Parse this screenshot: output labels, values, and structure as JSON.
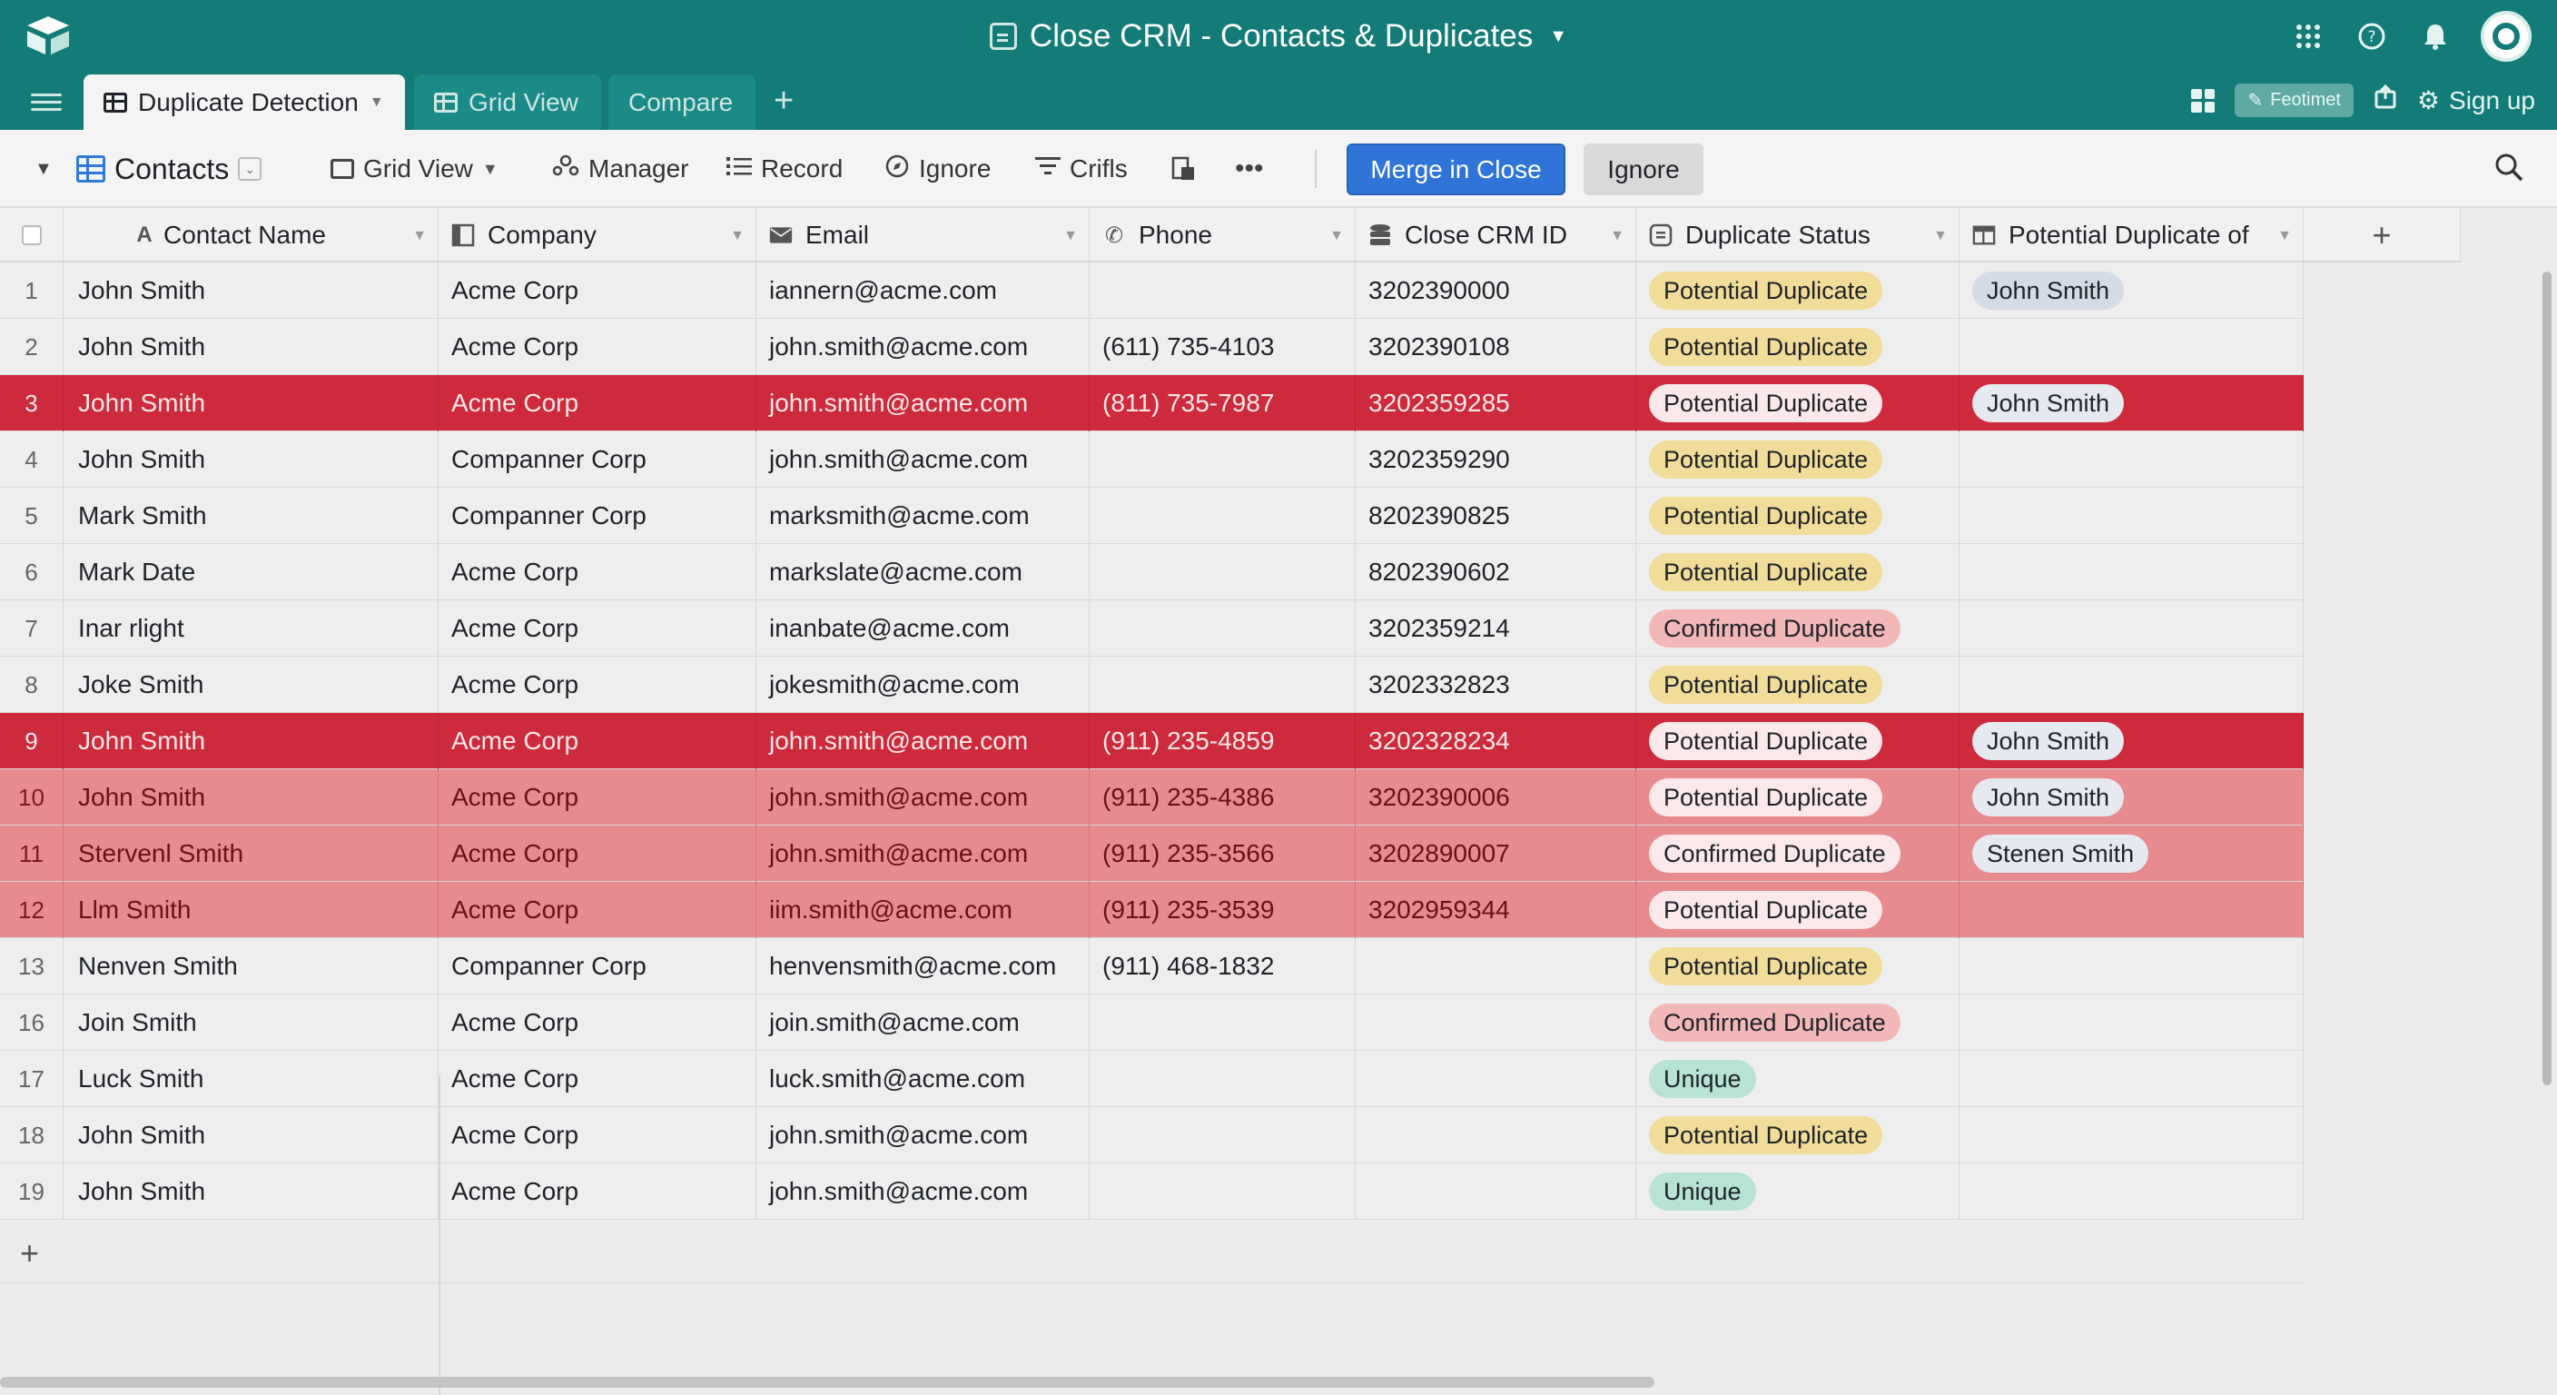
{
  "window": {
    "title": "Close CRM - Contacts & Duplicates"
  },
  "tabs": [
    {
      "label": "Duplicate Detection",
      "active": true
    },
    {
      "label": "Grid View",
      "active": false
    },
    {
      "label": "Compare",
      "active": false
    }
  ],
  "topright": {
    "feature_label": "Feotimet",
    "signup_label": "Sign up"
  },
  "toolbar": {
    "table_name": "Contacts",
    "view_label": "Grid View",
    "manager_label": "Manager",
    "record_label": "Record",
    "ignore_label": "Ignore",
    "filter_label": "Crifls",
    "merge_button": "Merge in Close",
    "ignore_button": "Ignore"
  },
  "columns": [
    {
      "label": "Contact Name",
      "icon": "text-field-icon"
    },
    {
      "label": "Company",
      "icon": "link-field-icon"
    },
    {
      "label": "Email",
      "icon": "email-icon"
    },
    {
      "label": "Phone",
      "icon": "phone-icon"
    },
    {
      "label": "Close CRM ID",
      "icon": "database-icon"
    },
    {
      "label": "Duplicate Status",
      "icon": "status-field-icon"
    },
    {
      "label": "Potential Duplicate of",
      "icon": "linked-record-icon"
    }
  ],
  "colors": {
    "header_teal": "#137b78",
    "highlight_dark": "#cd2a3b",
    "highlight_light": "#e78b8f",
    "merge_blue": "#2f74d6",
    "status_potential": "#f2dc9a",
    "status_confirmed": "#f2b7b7",
    "status_unique": "#b7e3d4"
  },
  "rows": [
    {
      "num": "1",
      "name": "John Smith",
      "company": "Acme Corp",
      "email": "iannern@acme.com",
      "phone": "",
      "crm_id": "3202390000",
      "status": "Potential Duplicate",
      "dup_of": "John Smith",
      "highlight": "none"
    },
    {
      "num": "2",
      "name": "John Smith",
      "company": "Acme Corp",
      "email": "john.smith@acme.com",
      "phone": "(611) 735-4103",
      "crm_id": "3202390108",
      "status": "Potential Duplicate",
      "dup_of": "",
      "highlight": "none"
    },
    {
      "num": "3",
      "name": "John Smith",
      "company": "Acme Corp",
      "email": "john.smith@acme.com",
      "phone": "(811) 735-7987",
      "crm_id": "3202359285",
      "status": "Potential Duplicate",
      "dup_of": "John Smith",
      "highlight": "dark"
    },
    {
      "num": "4",
      "name": "John Smith",
      "company": "Companner Corp",
      "email": "john.smith@acme.com",
      "phone": "",
      "crm_id": "3202359290",
      "status": "Potential Duplicate",
      "dup_of": "",
      "highlight": "none"
    },
    {
      "num": "5",
      "name": "Mark Smith",
      "company": "Companner Corp",
      "email": "marksmith@acme.com",
      "phone": "",
      "crm_id": "8202390825",
      "status": "Potential Duplicate",
      "dup_of": "",
      "highlight": "none"
    },
    {
      "num": "6",
      "name": "Mark Date",
      "company": "Acme Corp",
      "email": "markslate@acme.com",
      "phone": "",
      "crm_id": "8202390602",
      "status": "Potential Duplicate",
      "dup_of": "",
      "highlight": "none"
    },
    {
      "num": "7",
      "name": "Inar rlight",
      "company": "Acme Corp",
      "email": "inanbate@acme.com",
      "phone": "",
      "crm_id": "3202359214",
      "status": "Confirmed Duplicate",
      "dup_of": "",
      "highlight": "none"
    },
    {
      "num": "8",
      "name": "Joke Smith",
      "company": "Acme Corp",
      "email": "jokesmith@acme.com",
      "phone": "",
      "crm_id": "3202332823",
      "status": "Potential Duplicate",
      "dup_of": "",
      "highlight": "none"
    },
    {
      "num": "9",
      "name": "John Smith",
      "company": "Acme Corp",
      "email": "john.smith@acme.com",
      "phone": "(911) 235-4859",
      "crm_id": "3202328234",
      "status": "Potential Duplicate",
      "dup_of": "John Smith",
      "highlight": "dark"
    },
    {
      "num": "10",
      "name": "John Smith",
      "company": "Acme Corp",
      "email": "john.smith@acme.com",
      "phone": "(911) 235-4386",
      "crm_id": "3202390006",
      "status": "Potential Duplicate",
      "dup_of": "John Smith",
      "highlight": "light"
    },
    {
      "num": "11",
      "name": "Stervenl Smith",
      "company": "Acme Corp",
      "email": "john.smith@acme.com",
      "phone": "(911) 235-3566",
      "crm_id": "3202890007",
      "status": "Confirmed Duplicate",
      "dup_of": "Stenen Smith",
      "highlight": "light"
    },
    {
      "num": "12",
      "name": "Llm Smith",
      "company": "Acme Corp",
      "email": "iim.smith@acme.com",
      "phone": "(911) 235-3539",
      "crm_id": "3202959344",
      "status": "Potential Duplicate",
      "dup_of": "",
      "highlight": "light"
    },
    {
      "num": "13",
      "name": "Nenven Smith",
      "company": "Companner Corp",
      "email": "henvensmith@acme.com",
      "phone": "(911) 468-1832",
      "crm_id": "",
      "status": "Potential Duplicate",
      "dup_of": "",
      "highlight": "none"
    },
    {
      "num": "16",
      "name": "Join Smith",
      "company": "Acme Corp",
      "email": "join.smith@acme.com",
      "phone": "",
      "crm_id": "",
      "status": "Confirmed Duplicate",
      "dup_of": "",
      "highlight": "none"
    },
    {
      "num": "17",
      "name": "Luck Smith",
      "company": "Acme Corp",
      "email": "luck.smith@acme.com",
      "phone": "",
      "crm_id": "",
      "status": "Unique",
      "dup_of": "",
      "highlight": "none"
    },
    {
      "num": "18",
      "name": "John Smith",
      "company": "Acme Corp",
      "email": "john.smith@acme.com",
      "phone": "",
      "crm_id": "",
      "status": "Potential Duplicate",
      "dup_of": "",
      "highlight": "none"
    },
    {
      "num": "19",
      "name": "John Smith",
      "company": "Acme Corp",
      "email": "john.smith@acme.com",
      "phone": "",
      "crm_id": "",
      "status": "Unique",
      "dup_of": "",
      "highlight": "none"
    }
  ]
}
